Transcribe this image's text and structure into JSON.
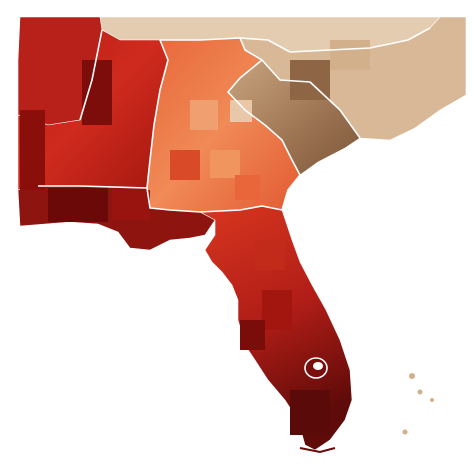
{
  "map": {
    "palette": {
      "darkest": "#5a0a08",
      "dark_red": "#8e1410",
      "red": "#b8211a",
      "bright_red": "#d6301f",
      "red_orange": "#df4b2c",
      "orange": "#ea6b3c",
      "light_orange": "#f08d5a",
      "peach": "#f2b48a",
      "tan": "#d8b896",
      "light_tan": "#e3ccb0",
      "brown": "#a27a58",
      "dark_brown": "#7e5a3e",
      "border": "#ffffff",
      "background": "#ffffff"
    },
    "regions": [
      {
        "id": "alabama",
        "fill_key": "red"
      },
      {
        "id": "florida-panhandle",
        "fill_key": "dark_red"
      },
      {
        "id": "florida-peninsula",
        "fill_key": "bright_red"
      },
      {
        "id": "georgia",
        "fill_key": "orange"
      },
      {
        "id": "south-carolina",
        "fill_key": "brown"
      },
      {
        "id": "north-carolina",
        "fill_key": "tan"
      },
      {
        "id": "tennessee",
        "fill_key": "light_tan"
      },
      {
        "id": "mississippi",
        "fill_key": "red"
      }
    ]
  }
}
